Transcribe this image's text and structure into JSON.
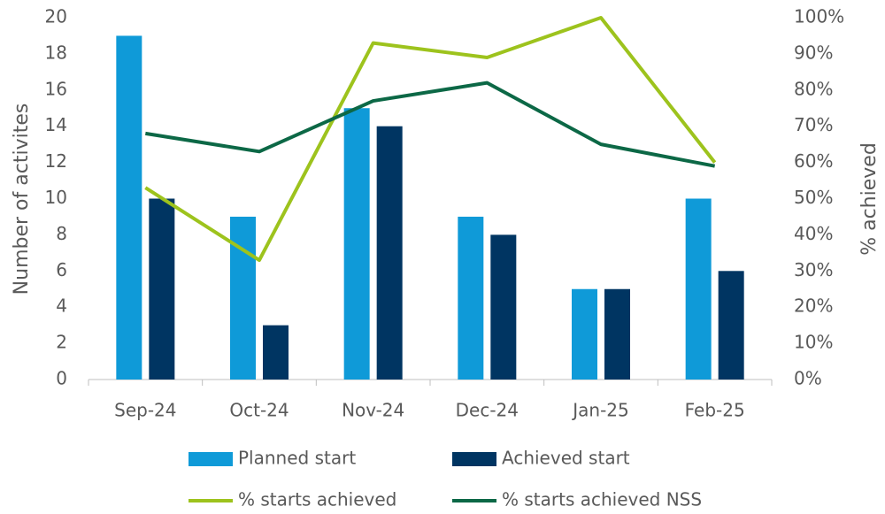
{
  "chart_data": {
    "type": "bar",
    "categories": [
      "Sep-24",
      "Oct-24",
      "Nov-24",
      "Dec-24",
      "Jan-25",
      "Feb-25"
    ],
    "series": [
      {
        "name": "Planned start",
        "color": "#0f9ad8",
        "type": "bar",
        "values": [
          19,
          9,
          15,
          9,
          5,
          10
        ]
      },
      {
        "name": "Achieved start",
        "color": "#003562",
        "type": "bar",
        "values": [
          10,
          3,
          14,
          8,
          5,
          6
        ]
      },
      {
        "name": "% starts achieved",
        "color": "#9dc31d",
        "type": "line",
        "axis": "y2",
        "values": [
          53,
          33,
          93,
          89,
          100,
          60
        ]
      },
      {
        "name": "% starts achieved NSS",
        "color": "#0c6846",
        "type": "line",
        "axis": "y2",
        "values": [
          68,
          63,
          77,
          82,
          65,
          59
        ]
      }
    ],
    "y_label": "Number of activites",
    "y2_label": "% achieved",
    "ylim": [
      0,
      20
    ],
    "yticks": [
      0,
      2,
      4,
      6,
      8,
      10,
      12,
      14,
      16,
      18,
      20
    ],
    "y2lim": [
      0,
      100
    ],
    "y2ticks": [
      {
        "value": 0,
        "label": "0%"
      },
      {
        "value": 10,
        "label": "10%"
      },
      {
        "value": 20,
        "label": "20%"
      },
      {
        "value": 30,
        "label": "30%"
      },
      {
        "value": 40,
        "label": "40%"
      },
      {
        "value": 50,
        "label": "50%"
      },
      {
        "value": 60,
        "label": "60%"
      },
      {
        "value": 70,
        "label": "70%"
      },
      {
        "value": 80,
        "label": "80%"
      },
      {
        "value": 90,
        "label": "90%"
      },
      {
        "value": 100,
        "label": "100%"
      }
    ],
    "legend": "bottom"
  }
}
